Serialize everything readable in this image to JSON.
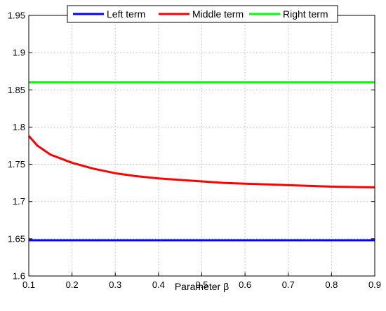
{
  "chart_data": {
    "type": "line",
    "title": "",
    "xlabel": "Parameter β",
    "ylabel": "",
    "xlim": [
      0.1,
      0.9
    ],
    "ylim": [
      1.6,
      1.95
    ],
    "xticks": [
      0.1,
      0.2,
      0.3,
      0.4,
      0.5,
      0.6,
      0.7,
      0.8,
      0.9
    ],
    "xtick_labels": [
      "0.1",
      "0.2",
      "0.3",
      "0.4",
      "0.5",
      "0.6",
      "0.7",
      "0.8",
      "0.9"
    ],
    "yticks": [
      1.6,
      1.65,
      1.7,
      1.75,
      1.8,
      1.85,
      1.9,
      1.95
    ],
    "ytick_labels": [
      "1.6",
      "1.65",
      "1.7",
      "1.75",
      "1.8",
      "1.85",
      "1.9",
      "1.95"
    ],
    "grid": true,
    "legend_position": "top",
    "series": [
      {
        "name": "Left term",
        "color": "#0000ff",
        "x": [
          0.1,
          0.9
        ],
        "y": [
          1.648,
          1.648
        ]
      },
      {
        "name": "Middle term",
        "color": "#ff0000",
        "x": [
          0.1,
          0.12,
          0.15,
          0.2,
          0.25,
          0.3,
          0.35,
          0.4,
          0.45,
          0.5,
          0.55,
          0.6,
          0.65,
          0.7,
          0.75,
          0.8,
          0.85,
          0.9
        ],
        "y": [
          1.788,
          1.775,
          1.763,
          1.752,
          1.744,
          1.738,
          1.734,
          1.731,
          1.729,
          1.727,
          1.725,
          1.724,
          1.723,
          1.722,
          1.721,
          1.72,
          1.7195,
          1.719
        ]
      },
      {
        "name": "Right term",
        "color": "#00ff00",
        "x": [
          0.1,
          0.9
        ],
        "y": [
          1.86,
          1.86
        ]
      }
    ]
  }
}
